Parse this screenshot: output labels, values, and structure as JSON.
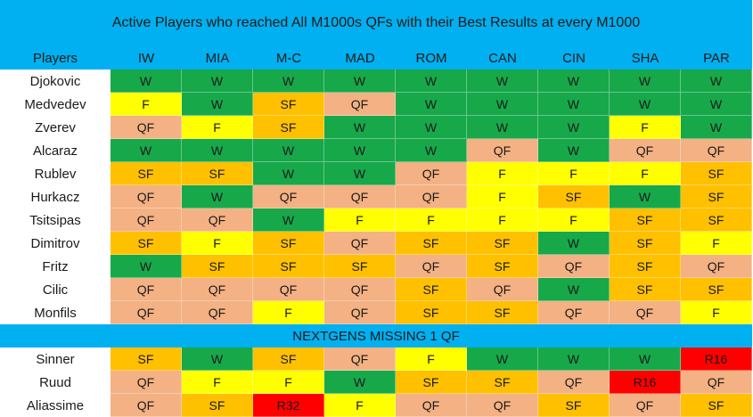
{
  "title": "Active Players who reached All M1000s QFs with their Best Results at every M1000",
  "columns": [
    "Players",
    "IW",
    "MIA",
    "M-C",
    "MAD",
    "ROM",
    "CAN",
    "CIN",
    "SHA",
    "PAR"
  ],
  "colors": {
    "W": "#17a84a",
    "F": "#ffff00",
    "SF": "#ffc000",
    "QF": "#f4b183",
    "R16": "#ff0000",
    "R32": "#ff0000",
    "header": "#00b0f0"
  },
  "group1": [
    {
      "name": "Djokovic",
      "results": [
        "W",
        "W",
        "W",
        "W",
        "W",
        "W",
        "W",
        "W",
        "W"
      ]
    },
    {
      "name": "Medvedev",
      "results": [
        "F",
        "W",
        "SF",
        "QF",
        "W",
        "W",
        "W",
        "W",
        "W"
      ]
    },
    {
      "name": "Zverev",
      "results": [
        "QF",
        "F",
        "SF",
        "W",
        "W",
        "W",
        "W",
        "F",
        "W"
      ]
    },
    {
      "name": "Alcaraz",
      "results": [
        "W",
        "W",
        "W",
        "W",
        "W",
        "QF",
        "W",
        "QF",
        "QF"
      ]
    },
    {
      "name": "Rublev",
      "results": [
        "SF",
        "SF",
        "W",
        "W",
        "QF",
        "F",
        "F",
        "F",
        "SF"
      ]
    },
    {
      "name": "Hurkacz",
      "results": [
        "QF",
        "W",
        "QF",
        "QF",
        "QF",
        "F",
        "SF",
        "W",
        "SF"
      ]
    },
    {
      "name": "Tsitsipas",
      "results": [
        "QF",
        "QF",
        "W",
        "F",
        "F",
        "F",
        "F",
        "SF",
        "SF"
      ]
    },
    {
      "name": "Dimitrov",
      "results": [
        "SF",
        "F",
        "SF",
        "QF",
        "SF",
        "SF",
        "W",
        "SF",
        "F"
      ]
    },
    {
      "name": "Fritz",
      "results": [
        "W",
        "SF",
        "SF",
        "SF",
        "QF",
        "SF",
        "QF",
        "SF",
        "QF"
      ]
    },
    {
      "name": "Cilic",
      "results": [
        "QF",
        "QF",
        "QF",
        "QF",
        "SF",
        "QF",
        "W",
        "SF",
        "SF"
      ]
    },
    {
      "name": "Monfils",
      "results": [
        "QF",
        "QF",
        "F",
        "QF",
        "SF",
        "SF",
        "QF",
        "QF",
        "F"
      ]
    }
  ],
  "separator": "NEXTGENS MISSING 1 QF",
  "group2": [
    {
      "name": "Sinner",
      "results": [
        "SF",
        "W",
        "SF",
        "QF",
        "F",
        "W",
        "W",
        "W",
        "R16"
      ]
    },
    {
      "name": "Ruud",
      "results": [
        "QF",
        "F",
        "F",
        "W",
        "SF",
        "SF",
        "QF",
        "R16",
        "QF"
      ]
    },
    {
      "name": "Aliassime",
      "results": [
        "QF",
        "SF",
        "R32",
        "F",
        "QF",
        "QF",
        "SF",
        "QF",
        "SF"
      ]
    }
  ]
}
